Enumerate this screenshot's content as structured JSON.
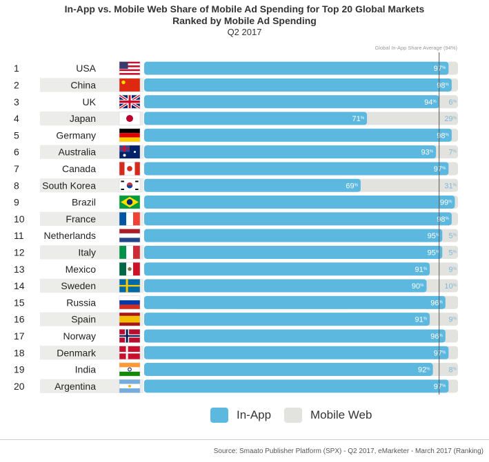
{
  "header": {
    "title": "In-App vs. Mobile Web Share of Mobile Ad Spending for Top 20 Global Markets",
    "subtitle": "Ranked by Mobile Ad Spending",
    "period": "Q2 2017"
  },
  "colors": {
    "in_app": "#5cb8de",
    "mobile_web": "#e2e2de",
    "row_stripe": "#ececea",
    "avg_line": "#555555"
  },
  "chart_data": {
    "type": "bar",
    "orientation": "horizontal",
    "stacked": true,
    "percent_suffix": "%",
    "categories": [
      "USA",
      "China",
      "UK",
      "Japan",
      "Germany",
      "Australia",
      "Canada",
      "South Korea",
      "Brazil",
      "France",
      "Netherlands",
      "Italy",
      "Mexico",
      "Sweden",
      "Russia",
      "Spain",
      "Norway",
      "Denmark",
      "India",
      "Argentina"
    ],
    "ranks": [
      1,
      2,
      3,
      4,
      5,
      6,
      7,
      8,
      9,
      10,
      11,
      12,
      13,
      14,
      15,
      16,
      17,
      18,
      19,
      20
    ],
    "series": [
      {
        "name": "In-App",
        "values": [
          97,
          98,
          94,
          71,
          98,
          93,
          97,
          69,
          99,
          98,
          95,
          95,
          91,
          90,
          96,
          91,
          96,
          97,
          92,
          97
        ]
      },
      {
        "name": "Mobile Web",
        "values": [
          3,
          2,
          6,
          29,
          2,
          7,
          3,
          31,
          1,
          2,
          5,
          5,
          9,
          10,
          4,
          9,
          4,
          3,
          8,
          3
        ]
      }
    ],
    "mobile_web_labels_shown": [
      false,
      false,
      true,
      true,
      false,
      true,
      false,
      true,
      false,
      false,
      true,
      true,
      true,
      true,
      false,
      true,
      false,
      false,
      true,
      false
    ],
    "xlim": [
      0,
      100
    ],
    "reference_line": {
      "value": 94,
      "label": "Global In-App Share Average (94%)"
    },
    "legend": {
      "placement": "bottom-center"
    }
  },
  "flags": [
    {
      "country": "USA",
      "icon": "usa-flag-icon"
    },
    {
      "country": "China",
      "icon": "china-flag-icon"
    },
    {
      "country": "UK",
      "icon": "uk-flag-icon"
    },
    {
      "country": "Japan",
      "icon": "japan-flag-icon"
    },
    {
      "country": "Germany",
      "icon": "germany-flag-icon"
    },
    {
      "country": "Australia",
      "icon": "australia-flag-icon"
    },
    {
      "country": "Canada",
      "icon": "canada-flag-icon"
    },
    {
      "country": "South Korea",
      "icon": "south-korea-flag-icon"
    },
    {
      "country": "Brazil",
      "icon": "brazil-flag-icon"
    },
    {
      "country": "France",
      "icon": "france-flag-icon"
    },
    {
      "country": "Netherlands",
      "icon": "netherlands-flag-icon"
    },
    {
      "country": "Italy",
      "icon": "italy-flag-icon"
    },
    {
      "country": "Mexico",
      "icon": "mexico-flag-icon"
    },
    {
      "country": "Sweden",
      "icon": "sweden-flag-icon"
    },
    {
      "country": "Russia",
      "icon": "russia-flag-icon"
    },
    {
      "country": "Spain",
      "icon": "spain-flag-icon"
    },
    {
      "country": "Norway",
      "icon": "norway-flag-icon"
    },
    {
      "country": "Denmark",
      "icon": "denmark-flag-icon"
    },
    {
      "country": "India",
      "icon": "india-flag-icon"
    },
    {
      "country": "Argentina",
      "icon": "argentina-flag-icon"
    }
  ],
  "source": "Source: Smaato Publisher Platform (SPX) - Q2 2017, eMarketer - March 2017 (Ranking)"
}
